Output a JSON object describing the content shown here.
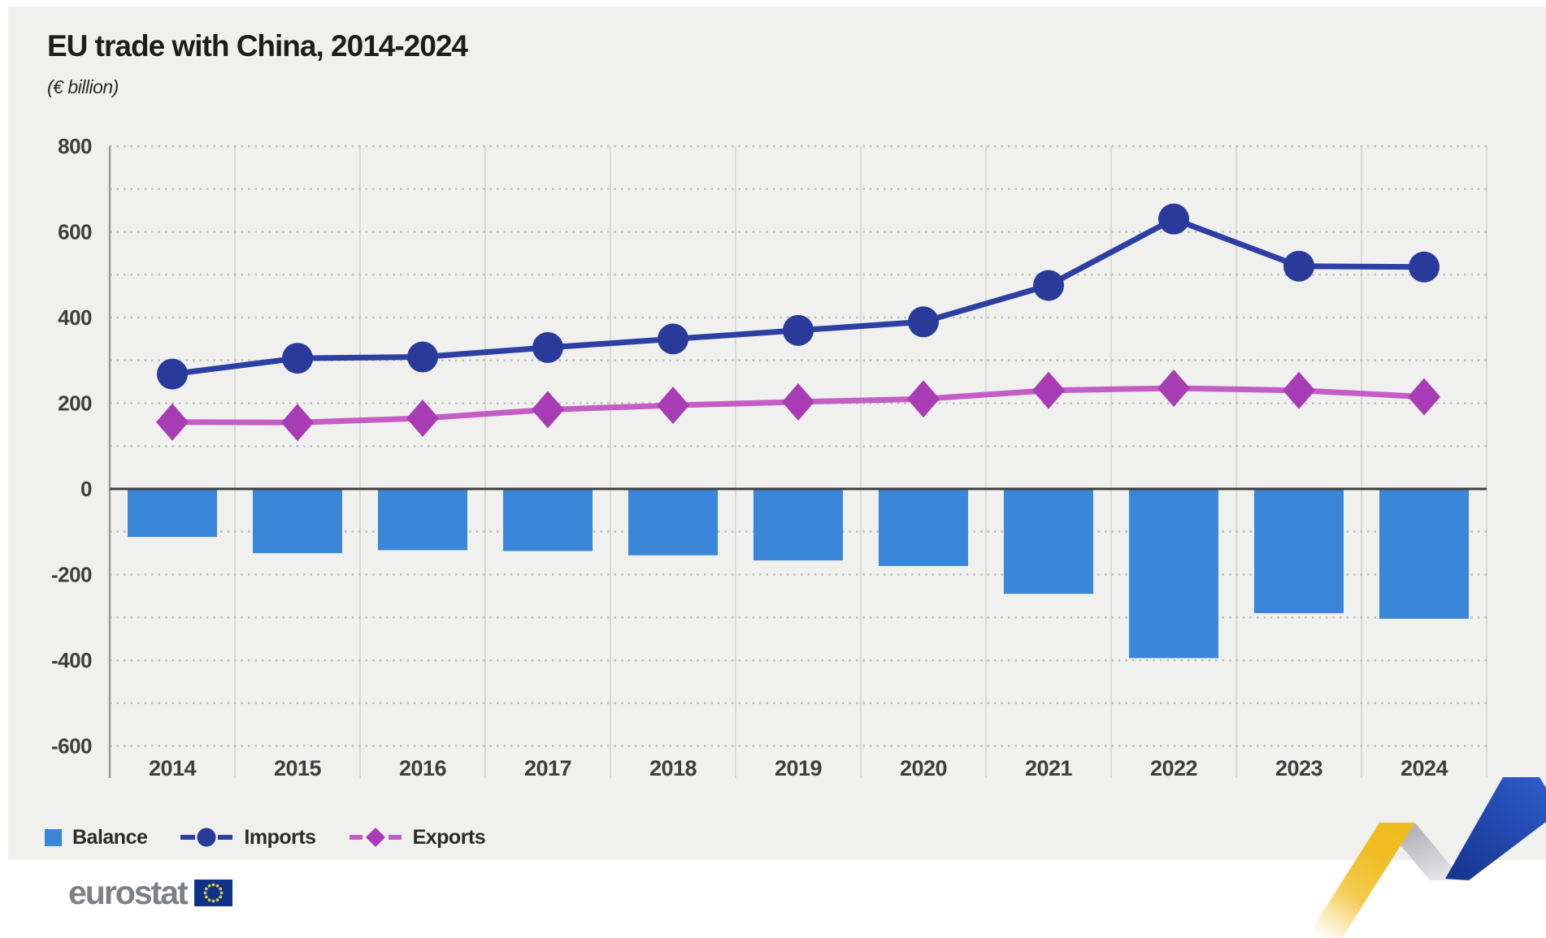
{
  "header": {
    "title": "EU trade with China, 2014-2024",
    "subtitle": "(€ billion)"
  },
  "legend": [
    {
      "label": "Balance",
      "marker": "square",
      "color": "#3a87d9"
    },
    {
      "label": "Imports",
      "marker": "circle",
      "color": "#2a3a9b",
      "line_color": "#2e3fa3"
    },
    {
      "label": "Exports",
      "marker": "diamond",
      "color": "#a73cb4",
      "line_color": "#c45ec6"
    }
  ],
  "footer": {
    "brand": "eurostat",
    "flag_background": "#0d3387",
    "flag_star_color": "#d9c44e"
  },
  "colors": {
    "page_background": "#ffffff",
    "card_background": "#f0f0ef",
    "grid_vertical": "#d9d9d8",
    "grid_dotted": "#bdbdbd",
    "axis_line": "#9b9b9b",
    "zero_line": "#3f3f3f",
    "tick_label": "#3e3e3e",
    "ribbon_yellow": "#efbd22",
    "ribbon_gray": "#bcbcc2",
    "ribbon_blue": "#2450bc"
  },
  "chart_data": {
    "type": "combo",
    "title": "EU trade with China, 2014-2024",
    "unit": "(€ billion)",
    "categories": [
      "2014",
      "2015",
      "2016",
      "2017",
      "2018",
      "2019",
      "2020",
      "2021",
      "2022",
      "2023",
      "2024"
    ],
    "series": [
      {
        "name": "Balance",
        "type": "bar",
        "color": "#3a87d9",
        "values": [
          -112,
          -150,
          -143,
          -145,
          -155,
          -167,
          -180,
          -245,
          -395,
          -290,
          -303
        ]
      },
      {
        "name": "Imports",
        "type": "line",
        "marker": "circle",
        "marker_color": "#2a3a9b",
        "line_color": "#2e3fa3",
        "values": [
          268,
          305,
          308,
          330,
          350,
          370,
          390,
          475,
          630,
          520,
          518
        ]
      },
      {
        "name": "Exports",
        "type": "line",
        "marker": "diamond",
        "marker_color": "#a73cb4",
        "line_color": "#c45ec6",
        "values": [
          156,
          155,
          165,
          185,
          195,
          203,
          210,
          230,
          235,
          230,
          215
        ]
      }
    ],
    "ylim": [
      -600,
      800
    ],
    "ytick_labels": [
      "800",
      "600",
      "400",
      "200",
      "0",
      "-200",
      "-400",
      "-600"
    ],
    "grid_step": 100,
    "grid": "horizontal-dotted, vertical-solid",
    "legend_position": "bottom-left",
    "xlabel": "",
    "ylabel": ""
  }
}
